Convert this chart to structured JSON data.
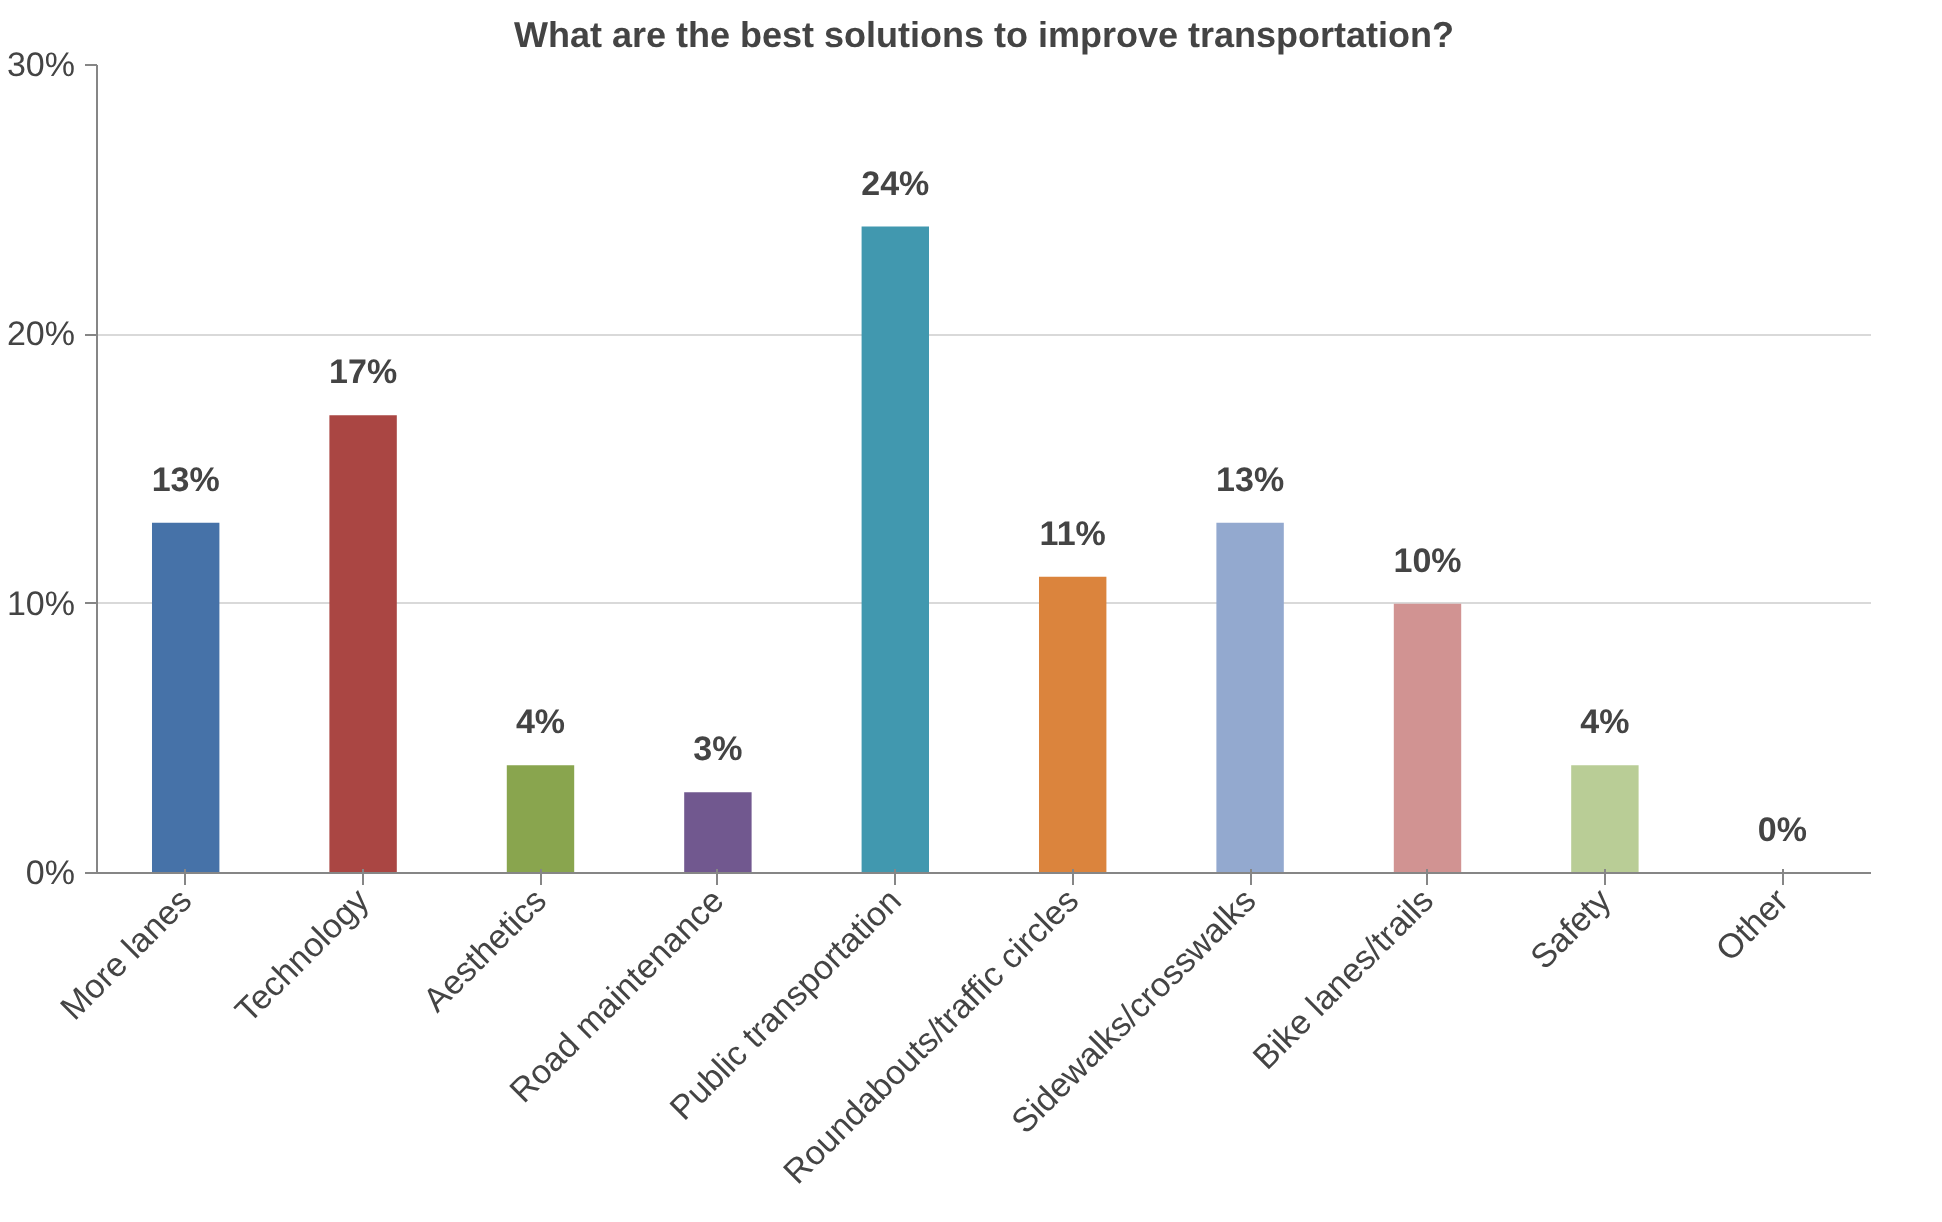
{
  "chart_data": {
    "type": "bar",
    "title": "What are the best solutions to improve transportation?",
    "categories": [
      "More lanes",
      "Technology",
      "Aesthetics",
      "Road maintenance",
      "Public transportation",
      "Roundabouts/traffic circles",
      "Sidewalks/crosswalks",
      "Bike lanes/trails",
      "Safety",
      "Other"
    ],
    "values": [
      13,
      17,
      4,
      3,
      24,
      11,
      13,
      10,
      4,
      0
    ],
    "value_labels": [
      "13%",
      "17%",
      "4%",
      "3%",
      "24%",
      "11%",
      "13%",
      "10%",
      "4%",
      "0%"
    ],
    "colors": [
      "#4672a8",
      "#aa4643",
      "#89a54e",
      "#71588f",
      "#4198af",
      "#db843d",
      "#93a9cf",
      "#d19392",
      "#b9cd96",
      "#a99bbd"
    ],
    "ylim": [
      0,
      30
    ],
    "yticks": [
      {
        "value": 0,
        "label": "0%"
      },
      {
        "value": 10,
        "label": "10%"
      },
      {
        "value": 20,
        "label": "20%"
      },
      {
        "value": 30,
        "label": "30%"
      }
    ],
    "grid": "y"
  }
}
